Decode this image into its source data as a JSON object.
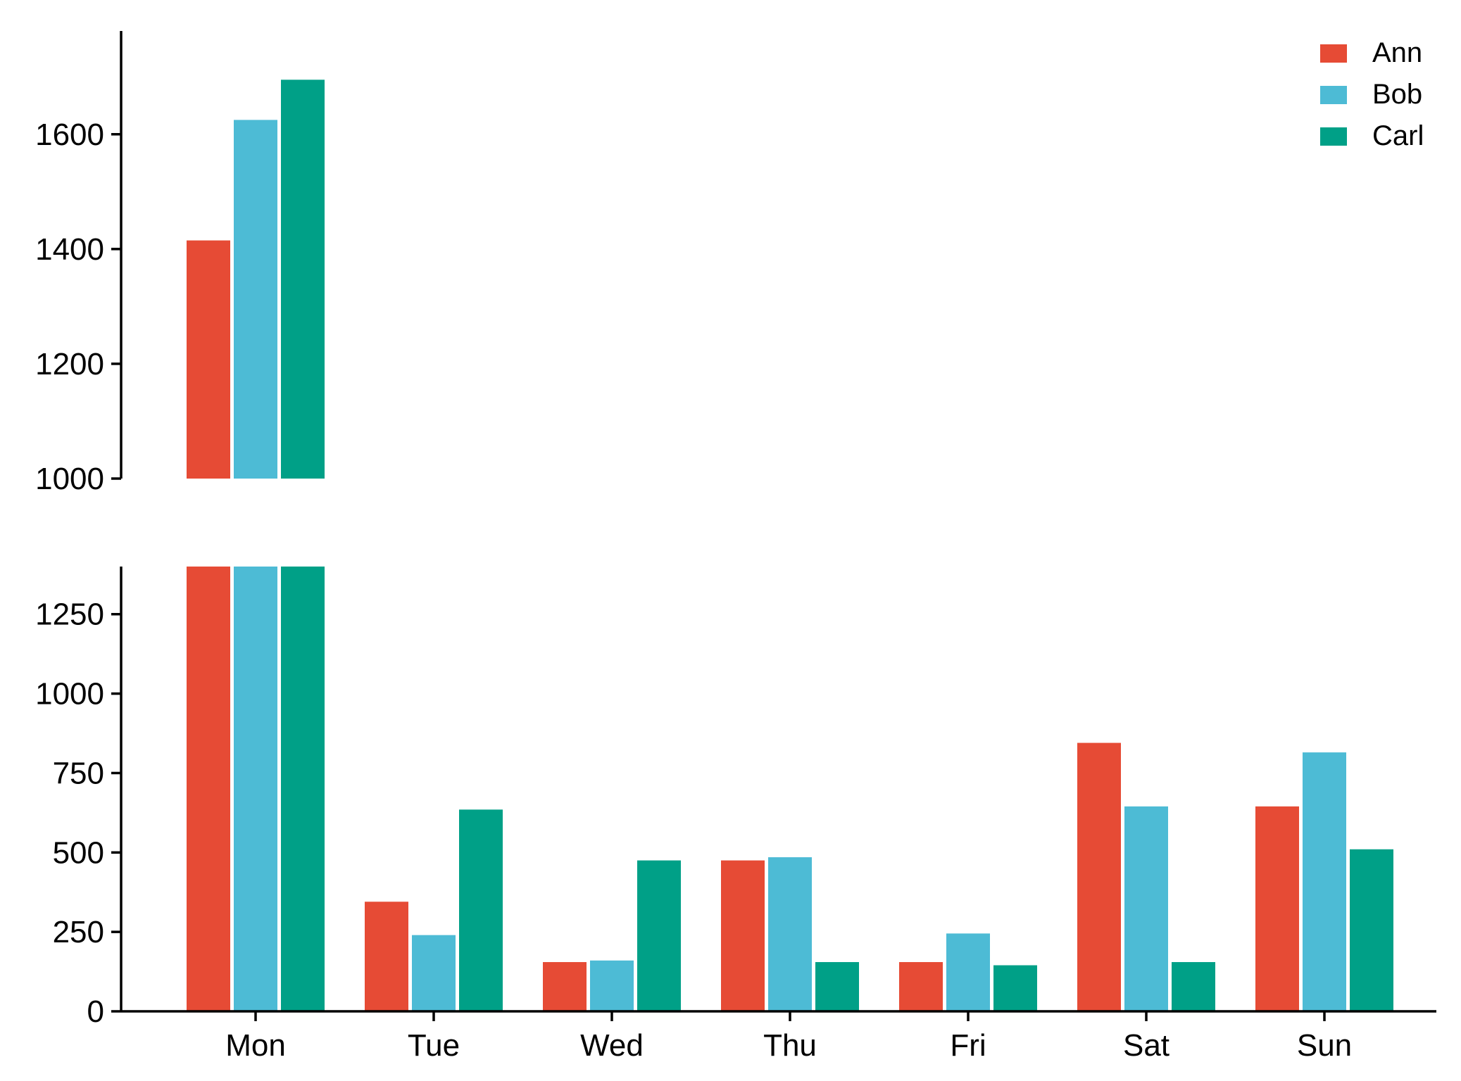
{
  "chart_data": {
    "type": "bar",
    "subtype": "grouped-bar-broken-y-axis",
    "title": "",
    "xlabel": "",
    "ylabel": "",
    "categories": [
      "Mon",
      "Tue",
      "Wed",
      "Thu",
      "Fri",
      "Sat",
      "Sun"
    ],
    "series": [
      {
        "name": "Ann",
        "color": "#E64B35",
        "values": [
          1415,
          345,
          155,
          475,
          155,
          845,
          645
        ]
      },
      {
        "name": "Bob",
        "color": "#4DBBD5",
        "values": [
          1625,
          240,
          160,
          485,
          245,
          645,
          815
        ]
      },
      {
        "name": "Carl",
        "color": "#00A087",
        "values": [
          1695,
          635,
          475,
          155,
          145,
          155,
          510
        ]
      }
    ],
    "upper_panel": {
      "ylim": [
        1000,
        1780
      ],
      "yticks": [
        1000,
        1200,
        1400,
        1600
      ]
    },
    "lower_panel": {
      "ylim": [
        0,
        1400
      ],
      "yticks": [
        0,
        250,
        500,
        750,
        1000,
        1250
      ]
    },
    "legend": {
      "position": "top-right"
    },
    "grid": false
  }
}
